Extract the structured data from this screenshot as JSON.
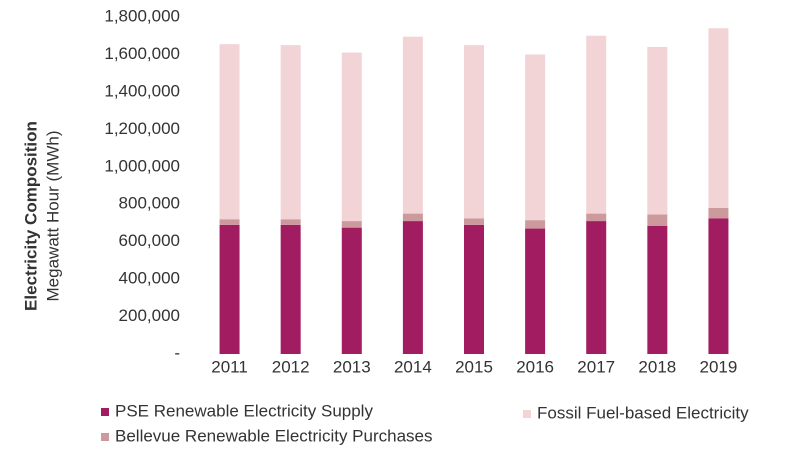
{
  "chart_data": {
    "type": "stacked_bar",
    "y_label_bold": "Electricity Composition",
    "y_label": "Megawatt Hour (MWh)",
    "categories": [
      "2011",
      "2012",
      "2013",
      "2014",
      "2015",
      "2016",
      "2017",
      "2018",
      "2019"
    ],
    "series": [
      {
        "name": "PSE Renewable Electricity Supply",
        "color": "#a21c62",
        "values": [
          690000,
          690000,
          675000,
          710000,
          690000,
          670000,
          710000,
          685000,
          725000
        ]
      },
      {
        "name": "Bellevue Renewable Electricity Purchases",
        "color": "#cc9a9c",
        "values": [
          30000,
          30000,
          35000,
          40000,
          35000,
          45000,
          40000,
          60000,
          55000
        ]
      },
      {
        "name": "Fossil Fuel-based Electricity",
        "color": "#f2d4d7",
        "values": [
          935000,
          930000,
          900000,
          945000,
          925000,
          885000,
          950000,
          895000,
          960000
        ]
      }
    ],
    "ylim": [
      0,
      1800000
    ],
    "yticks": [
      {
        "value": 0,
        "label": "-"
      },
      {
        "value": 200000,
        "label": "200,000"
      },
      {
        "value": 400000,
        "label": "400,000"
      },
      {
        "value": 600000,
        "label": "600,000"
      },
      {
        "value": 800000,
        "label": "800,000"
      },
      {
        "value": 1000000,
        "label": "1,000,000"
      },
      {
        "value": 1200000,
        "label": "1,200,000"
      },
      {
        "value": 1400000,
        "label": "1,400,000"
      },
      {
        "value": 1600000,
        "label": "1,600,000"
      },
      {
        "value": 1800000,
        "label": "1,800,000"
      }
    ],
    "grid": false
  }
}
